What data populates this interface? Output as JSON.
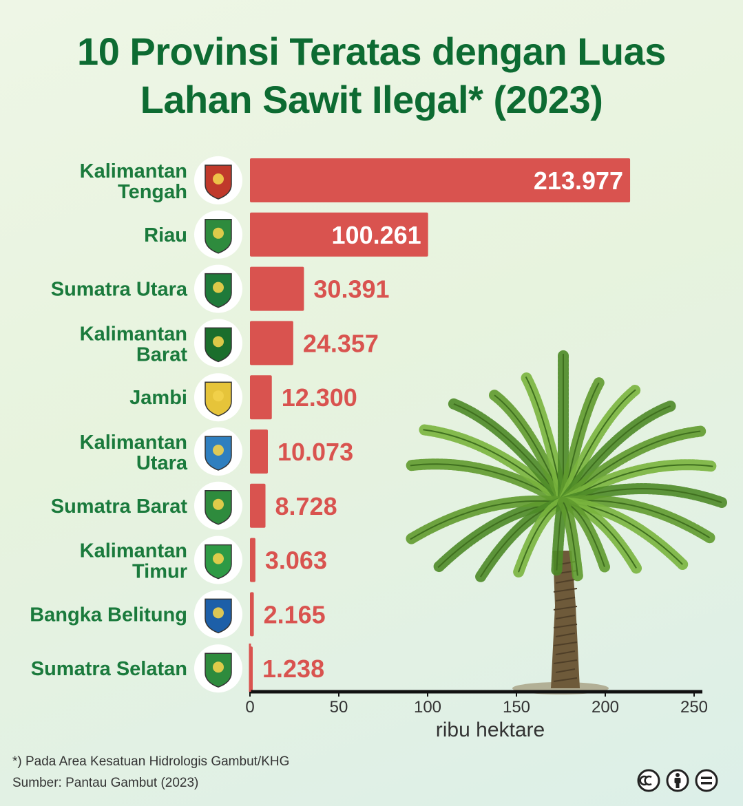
{
  "title_line1": "10 Provinsi Teratas dengan Luas",
  "title_line2": "Lahan Sawit Ilegal* (2023)",
  "chart_data": {
    "type": "bar",
    "orientation": "horizontal",
    "categories": [
      [
        "Kalimantan",
        "Tengah"
      ],
      [
        "Riau"
      ],
      [
        "Sumatra Utara"
      ],
      [
        "Kalimantan",
        "Barat"
      ],
      [
        "Jambi"
      ],
      [
        "Kalimantan",
        "Utara"
      ],
      [
        "Sumatra Barat"
      ],
      [
        "Kalimantan",
        "Timur"
      ],
      [
        "Bangka Belitung"
      ],
      [
        "Sumatra Selatan"
      ]
    ],
    "values": [
      213.977,
      100.261,
      30.391,
      24.357,
      12.3,
      10.073,
      8.728,
      3.063,
      2.165,
      1.238
    ],
    "value_labels": [
      "213.977",
      "100.261",
      "30.391",
      "24.357",
      "12.300",
      "10.073",
      "8.728",
      "3.063",
      "2.165",
      "1.238"
    ],
    "xlim": [
      0,
      250
    ],
    "xticks": [
      0,
      50,
      100,
      150,
      200,
      250
    ],
    "xlabel": "ribu hektare",
    "bar_color": "#d9534f",
    "label_inside_color": "#ffffff",
    "label_outside_color": "#d9534f",
    "label_color": "#1a7a3c",
    "grid": false
  },
  "footnote": "*) Pada Area Kesatuan Hidrologis Gambut/KHG",
  "source": "Sumber: Pantau Gambut (2023)",
  "icons": [
    "creative-commons-icon",
    "attribution-icon",
    "no-derivatives-icon",
    "palm-tree-illustration",
    "province-emblem-icon"
  ]
}
